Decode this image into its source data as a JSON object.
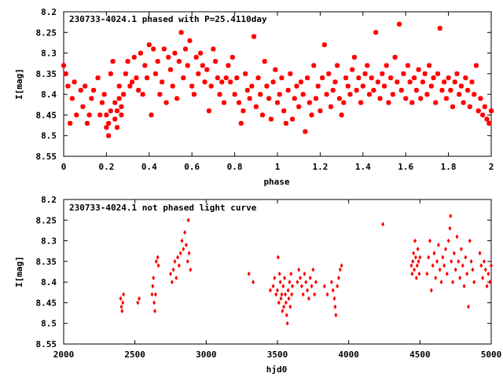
{
  "chart_data": [
    {
      "type": "scatter",
      "title": "230733-4024.1 phased with P=25.4110day",
      "xlabel": "phase",
      "ylabel": "I[mag]",
      "xlim": [
        0,
        2
      ],
      "ylim": [
        8.55,
        8.2
      ],
      "y_inverted": true,
      "grid": false,
      "marker_color": "#ff0000",
      "marker": "filled-star",
      "x_ticks": [
        "0",
        "0.2",
        "0.4",
        "0.6",
        "0.8",
        "1",
        "1.2",
        "1.4",
        "1.6",
        "1.8",
        "2"
      ],
      "y_ticks": [
        "8.2",
        "8.25",
        "8.3",
        "8.35",
        "8.4",
        "8.45",
        "8.5",
        "8.55"
      ],
      "points": [
        [
          0.0,
          8.33
        ],
        [
          0.01,
          8.35
        ],
        [
          0.02,
          8.38
        ],
        [
          0.03,
          8.47
        ],
        [
          0.04,
          8.41
        ],
        [
          0.05,
          8.37
        ],
        [
          0.06,
          8.45
        ],
        [
          0.08,
          8.39
        ],
        [
          0.09,
          8.43
        ],
        [
          0.1,
          8.38
        ],
        [
          0.11,
          8.47
        ],
        [
          0.12,
          8.45
        ],
        [
          0.13,
          8.41
        ],
        [
          0.14,
          8.39
        ],
        [
          0.16,
          8.36
        ],
        [
          0.17,
          8.45
        ],
        [
          0.18,
          8.42
        ],
        [
          0.19,
          8.4
        ],
        [
          0.2,
          8.45
        ],
        [
          0.2,
          8.48
        ],
        [
          0.21,
          8.5
        ],
        [
          0.21,
          8.47
        ],
        [
          0.22,
          8.44
        ],
        [
          0.22,
          8.35
        ],
        [
          0.23,
          8.32
        ],
        [
          0.24,
          8.46
        ],
        [
          0.24,
          8.42
        ],
        [
          0.25,
          8.44
        ],
        [
          0.25,
          8.48
        ],
        [
          0.26,
          8.41
        ],
        [
          0.26,
          8.38
        ],
        [
          0.27,
          8.43
        ],
        [
          0.27,
          8.45
        ],
        [
          0.28,
          8.4
        ],
        [
          0.29,
          8.35
        ],
        [
          0.3,
          8.32
        ],
        [
          0.31,
          8.38
        ],
        [
          0.32,
          8.37
        ],
        [
          0.33,
          8.31
        ],
        [
          0.34,
          8.36
        ],
        [
          0.35,
          8.39
        ],
        [
          0.36,
          8.3
        ],
        [
          0.37,
          8.4
        ],
        [
          0.38,
          8.33
        ],
        [
          0.39,
          8.36
        ],
        [
          0.4,
          8.28
        ],
        [
          0.41,
          8.45
        ],
        [
          0.42,
          8.29
        ],
        [
          0.43,
          8.35
        ],
        [
          0.44,
          8.32
        ],
        [
          0.45,
          8.4
        ],
        [
          0.46,
          8.37
        ],
        [
          0.47,
          8.29
        ],
        [
          0.48,
          8.42
        ],
        [
          0.49,
          8.31
        ],
        [
          0.5,
          8.34
        ],
        [
          0.51,
          8.38
        ],
        [
          0.52,
          8.3
        ],
        [
          0.53,
          8.41
        ],
        [
          0.54,
          8.32
        ],
        [
          0.55,
          8.25
        ],
        [
          0.56,
          8.36
        ],
        [
          0.57,
          8.29
        ],
        [
          0.58,
          8.33
        ],
        [
          0.59,
          8.27
        ],
        [
          0.6,
          8.38
        ],
        [
          0.61,
          8.4
        ],
        [
          0.62,
          8.31
        ],
        [
          0.63,
          8.35
        ],
        [
          0.64,
          8.3
        ],
        [
          0.65,
          8.33
        ],
        [
          0.66,
          8.37
        ],
        [
          0.67,
          8.34
        ],
        [
          0.68,
          8.44
        ],
        [
          0.69,
          8.38
        ],
        [
          0.7,
          8.29
        ],
        [
          0.71,
          8.32
        ],
        [
          0.72,
          8.36
        ],
        [
          0.73,
          8.4
        ],
        [
          0.74,
          8.37
        ],
        [
          0.75,
          8.42
        ],
        [
          0.76,
          8.36
        ],
        [
          0.77,
          8.33
        ],
        [
          0.78,
          8.37
        ],
        [
          0.79,
          8.31
        ],
        [
          0.8,
          8.4
        ],
        [
          0.81,
          8.36
        ],
        [
          0.82,
          8.42
        ],
        [
          0.83,
          8.47
        ],
        [
          0.84,
          8.44
        ],
        [
          0.85,
          8.35
        ],
        [
          0.86,
          8.39
        ],
        [
          0.87,
          8.41
        ],
        [
          0.88,
          8.38
        ],
        [
          0.89,
          8.26
        ],
        [
          0.9,
          8.43
        ],
        [
          0.91,
          8.36
        ],
        [
          0.92,
          8.4
        ],
        [
          0.93,
          8.45
        ],
        [
          0.94,
          8.32
        ],
        [
          0.95,
          8.38
        ],
        [
          0.96,
          8.41
        ],
        [
          0.97,
          8.46
        ],
        [
          0.98,
          8.37
        ],
        [
          0.99,
          8.34
        ],
        [
          1.0,
          8.42
        ],
        [
          1.01,
          8.4
        ],
        [
          1.02,
          8.36
        ],
        [
          1.03,
          8.44
        ],
        [
          1.04,
          8.47
        ],
        [
          1.05,
          8.39
        ],
        [
          1.06,
          8.35
        ],
        [
          1.07,
          8.46
        ],
        [
          1.08,
          8.41
        ],
        [
          1.09,
          8.38
        ],
        [
          1.1,
          8.43
        ],
        [
          1.11,
          8.37
        ],
        [
          1.12,
          8.4
        ],
        [
          1.13,
          8.49
        ],
        [
          1.14,
          8.36
        ],
        [
          1.15,
          8.42
        ],
        [
          1.16,
          8.45
        ],
        [
          1.17,
          8.33
        ],
        [
          1.18,
          8.41
        ],
        [
          1.19,
          8.38
        ],
        [
          1.2,
          8.44
        ],
        [
          1.21,
          8.36
        ],
        [
          1.22,
          8.28
        ],
        [
          1.23,
          8.4
        ],
        [
          1.24,
          8.35
        ],
        [
          1.25,
          8.43
        ],
        [
          1.26,
          8.39
        ],
        [
          1.27,
          8.37
        ],
        [
          1.28,
          8.33
        ],
        [
          1.29,
          8.41
        ],
        [
          1.3,
          8.45
        ],
        [
          1.31,
          8.42
        ],
        [
          1.32,
          8.36
        ],
        [
          1.33,
          8.38
        ],
        [
          1.34,
          8.4
        ],
        [
          1.35,
          8.34
        ],
        [
          1.36,
          8.31
        ],
        [
          1.37,
          8.39
        ],
        [
          1.38,
          8.36
        ],
        [
          1.39,
          8.42
        ],
        [
          1.4,
          8.38
        ],
        [
          1.41,
          8.35
        ],
        [
          1.42,
          8.33
        ],
        [
          1.43,
          8.4
        ],
        [
          1.44,
          8.36
        ],
        [
          1.45,
          8.39
        ],
        [
          1.46,
          8.25
        ],
        [
          1.47,
          8.37
        ],
        [
          1.48,
          8.41
        ],
        [
          1.49,
          8.35
        ],
        [
          1.5,
          8.38
        ],
        [
          1.51,
          8.33
        ],
        [
          1.52,
          8.42
        ],
        [
          1.53,
          8.36
        ],
        [
          1.54,
          8.4
        ],
        [
          1.55,
          8.31
        ],
        [
          1.56,
          8.37
        ],
        [
          1.57,
          8.23
        ],
        [
          1.58,
          8.39
        ],
        [
          1.59,
          8.35
        ],
        [
          1.6,
          8.41
        ],
        [
          1.61,
          8.33
        ],
        [
          1.62,
          8.37
        ],
        [
          1.63,
          8.42
        ],
        [
          1.64,
          8.36
        ],
        [
          1.65,
          8.39
        ],
        [
          1.66,
          8.34
        ],
        [
          1.67,
          8.41
        ],
        [
          1.68,
          8.37
        ],
        [
          1.69,
          8.35
        ],
        [
          1.7,
          8.4
        ],
        [
          1.71,
          8.33
        ],
        [
          1.72,
          8.38
        ],
        [
          1.73,
          8.36
        ],
        [
          1.74,
          8.42
        ],
        [
          1.75,
          8.35
        ],
        [
          1.76,
          8.24
        ],
        [
          1.77,
          8.39
        ],
        [
          1.78,
          8.37
        ],
        [
          1.79,
          8.41
        ],
        [
          1.8,
          8.36
        ],
        [
          1.81,
          8.39
        ],
        [
          1.82,
          8.43
        ],
        [
          1.83,
          8.37
        ],
        [
          1.84,
          8.35
        ],
        [
          1.85,
          8.4
        ],
        [
          1.86,
          8.38
        ],
        [
          1.87,
          8.42
        ],
        [
          1.88,
          8.36
        ],
        [
          1.89,
          8.39
        ],
        [
          1.9,
          8.43
        ],
        [
          1.91,
          8.37
        ],
        [
          1.92,
          8.4
        ],
        [
          1.93,
          8.33
        ],
        [
          1.94,
          8.44
        ],
        [
          1.95,
          8.41
        ],
        [
          1.96,
          8.45
        ],
        [
          1.97,
          8.43
        ],
        [
          1.98,
          8.46
        ],
        [
          1.99,
          8.47
        ],
        [
          2.0,
          8.44
        ]
      ]
    },
    {
      "type": "scatter",
      "title": "230733-4024.1 not phased light curve",
      "xlabel": "hjd0",
      "ylabel": "I[mag]",
      "xlim": [
        2000,
        5000
      ],
      "ylim": [
        8.55,
        8.2
      ],
      "y_inverted": true,
      "grid": false,
      "marker_color": "#ff0000",
      "marker": "filled-diamond",
      "x_ticks": [
        "2000",
        "2500",
        "3000",
        "3500",
        "4000",
        "4500",
        "5000"
      ],
      "y_ticks": [
        "8.2",
        "8.25",
        "8.3",
        "8.35",
        "8.4",
        "8.45",
        "8.5",
        "8.55"
      ],
      "points": [
        [
          2400,
          8.44
        ],
        [
          2405,
          8.46
        ],
        [
          2410,
          8.47
        ],
        [
          2415,
          8.45
        ],
        [
          2420,
          8.43
        ],
        [
          2520,
          8.45
        ],
        [
          2530,
          8.44
        ],
        [
          2620,
          8.43
        ],
        [
          2625,
          8.41
        ],
        [
          2630,
          8.39
        ],
        [
          2635,
          8.45
        ],
        [
          2640,
          8.47
        ],
        [
          2645,
          8.43
        ],
        [
          2650,
          8.35
        ],
        [
          2660,
          8.34
        ],
        [
          2665,
          8.36
        ],
        [
          2750,
          8.38
        ],
        [
          2760,
          8.4
        ],
        [
          2770,
          8.37
        ],
        [
          2780,
          8.35
        ],
        [
          2790,
          8.39
        ],
        [
          2800,
          8.34
        ],
        [
          2810,
          8.36
        ],
        [
          2820,
          8.33
        ],
        [
          2830,
          8.3
        ],
        [
          2840,
          8.32
        ],
        [
          2850,
          8.28
        ],
        [
          2860,
          8.31
        ],
        [
          2870,
          8.35
        ],
        [
          2875,
          8.25
        ],
        [
          2880,
          8.33
        ],
        [
          2890,
          8.37
        ],
        [
          3300,
          8.38
        ],
        [
          3330,
          8.4
        ],
        [
          3450,
          8.42
        ],
        [
          3470,
          8.41
        ],
        [
          3480,
          8.39
        ],
        [
          3490,
          8.43
        ],
        [
          3500,
          8.42
        ],
        [
          3505,
          8.34
        ],
        [
          3510,
          8.45
        ],
        [
          3515,
          8.38
        ],
        [
          3520,
          8.4
        ],
        [
          3525,
          8.44
        ],
        [
          3530,
          8.43
        ],
        [
          3535,
          8.47
        ],
        [
          3540,
          8.41
        ],
        [
          3545,
          8.46
        ],
        [
          3550,
          8.39
        ],
        [
          3555,
          8.43
        ],
        [
          3560,
          8.45
        ],
        [
          3565,
          8.48
        ],
        [
          3570,
          8.5
        ],
        [
          3575,
          8.42
        ],
        [
          3580,
          8.44
        ],
        [
          3585,
          8.4
        ],
        [
          3590,
          8.46
        ],
        [
          3595,
          8.38
        ],
        [
          3600,
          8.43
        ],
        [
          3605,
          8.41
        ],
        [
          3640,
          8.4
        ],
        [
          3650,
          8.37
        ],
        [
          3660,
          8.39
        ],
        [
          3670,
          8.41
        ],
        [
          3680,
          8.43
        ],
        [
          3690,
          8.38
        ],
        [
          3700,
          8.4
        ],
        [
          3710,
          8.42
        ],
        [
          3720,
          8.44
        ],
        [
          3730,
          8.39
        ],
        [
          3740,
          8.41
        ],
        [
          3750,
          8.37
        ],
        [
          3760,
          8.43
        ],
        [
          3770,
          8.4
        ],
        [
          3830,
          8.41
        ],
        [
          3850,
          8.43
        ],
        [
          3880,
          8.4
        ],
        [
          3890,
          8.42
        ],
        [
          3900,
          8.44
        ],
        [
          3905,
          8.46
        ],
        [
          3910,
          8.48
        ],
        [
          3920,
          8.41
        ],
        [
          3930,
          8.39
        ],
        [
          3940,
          8.37
        ],
        [
          3950,
          8.36
        ],
        [
          4240,
          8.26
        ],
        [
          4440,
          8.36
        ],
        [
          4445,
          8.38
        ],
        [
          4450,
          8.35
        ],
        [
          4455,
          8.33
        ],
        [
          4460,
          8.37
        ],
        [
          4465,
          8.3
        ],
        [
          4470,
          8.34
        ],
        [
          4475,
          8.39
        ],
        [
          4480,
          8.36
        ],
        [
          4485,
          8.32
        ],
        [
          4490,
          8.35
        ],
        [
          4495,
          8.38
        ],
        [
          4500,
          8.34
        ],
        [
          4550,
          8.38
        ],
        [
          4560,
          8.34
        ],
        [
          4570,
          8.3
        ],
        [
          4580,
          8.42
        ],
        [
          4590,
          8.36
        ],
        [
          4600,
          8.33
        ],
        [
          4610,
          8.39
        ],
        [
          4620,
          8.35
        ],
        [
          4630,
          8.31
        ],
        [
          4640,
          8.37
        ],
        [
          4650,
          8.4
        ],
        [
          4660,
          8.34
        ],
        [
          4670,
          8.36
        ],
        [
          4680,
          8.32
        ],
        [
          4690,
          8.38
        ],
        [
          4700,
          8.3
        ],
        [
          4710,
          8.27
        ],
        [
          4715,
          8.24
        ],
        [
          4720,
          8.35
        ],
        [
          4730,
          8.4
        ],
        [
          4740,
          8.33
        ],
        [
          4750,
          8.37
        ],
        [
          4760,
          8.29
        ],
        [
          4770,
          8.35
        ],
        [
          4780,
          8.39
        ],
        [
          4790,
          8.32
        ],
        [
          4800,
          8.36
        ],
        [
          4810,
          8.41
        ],
        [
          4820,
          8.34
        ],
        [
          4830,
          8.38
        ],
        [
          4840,
          8.46
        ],
        [
          4850,
          8.3
        ],
        [
          4860,
          8.35
        ],
        [
          4870,
          8.37
        ],
        [
          4880,
          8.4
        ],
        [
          4920,
          8.33
        ],
        [
          4930,
          8.36
        ],
        [
          4940,
          8.39
        ],
        [
          4950,
          8.35
        ],
        [
          4960,
          8.37
        ],
        [
          4970,
          8.41
        ],
        [
          4980,
          8.38
        ],
        [
          4990,
          8.4
        ],
        [
          5000,
          8.36
        ]
      ]
    }
  ]
}
